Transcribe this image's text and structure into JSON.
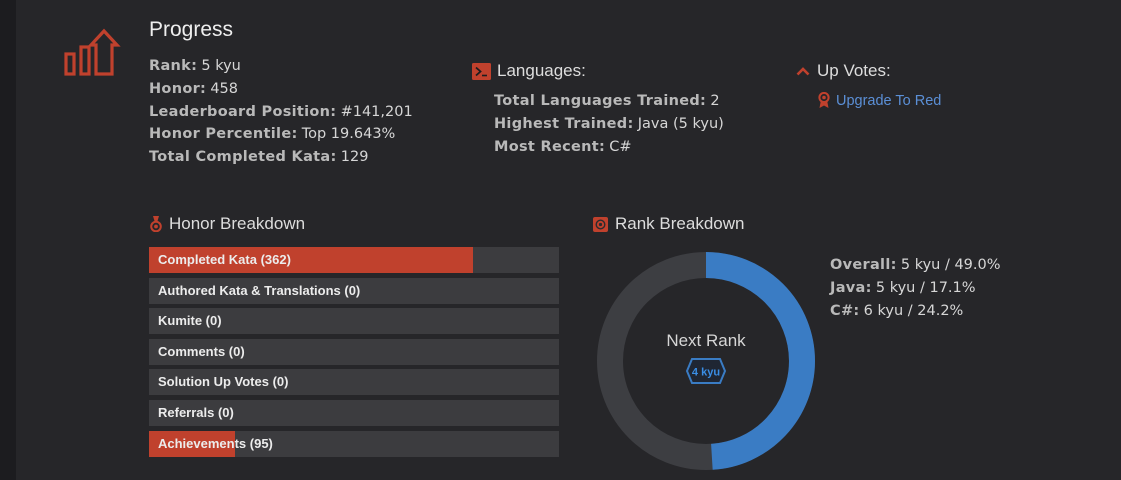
{
  "progress": {
    "title": "Progress",
    "stats": [
      {
        "label": "Rank:",
        "value": "5 kyu"
      },
      {
        "label": "Honor:",
        "value": "458"
      },
      {
        "label": "Leaderboard Position:",
        "value": "#141,201"
      },
      {
        "label": "Honor Percentile:",
        "value": "Top 19.643%"
      },
      {
        "label": "Total Completed Kata:",
        "value": "129"
      }
    ]
  },
  "languages": {
    "title": "Languages:",
    "stats": [
      {
        "label": "Total Languages Trained:",
        "value": "2"
      },
      {
        "label": "Highest Trained:",
        "value": "Java (5 kyu)"
      },
      {
        "label": "Most Recent:",
        "value": "C#"
      }
    ]
  },
  "upvotes": {
    "title": "Up Votes:",
    "link_label": "Upgrade To Red"
  },
  "honor_breakdown": {
    "title": "Honor Breakdown",
    "bars": [
      {
        "label": "Completed Kata (362)",
        "fill": 0.79
      },
      {
        "label": "Authored Kata & Translations (0)",
        "fill": 0
      },
      {
        "label": "Kumite (0)",
        "fill": 0
      },
      {
        "label": "Comments (0)",
        "fill": 0
      },
      {
        "label": "Solution Up Votes (0)",
        "fill": 0
      },
      {
        "label": "Referrals (0)",
        "fill": 0
      },
      {
        "label": "Achievements (95)",
        "fill": 0.21
      }
    ]
  },
  "rank_breakdown": {
    "title": "Rank Breakdown",
    "next_rank_label": "Next Rank",
    "next_rank_badge": "4 kyu",
    "progress": 0.49,
    "stats": [
      {
        "label": "Overall:",
        "value": "5 kyu / 49.0%"
      },
      {
        "label": "Java:",
        "value": "5 kyu / 17.1%"
      },
      {
        "label": "C#:",
        "value": "6 kyu / 24.2%"
      }
    ]
  },
  "colors": {
    "accent_red": "#c0412d",
    "rank_blue": "#3a7cc4",
    "link_blue": "#5b8fd6"
  }
}
